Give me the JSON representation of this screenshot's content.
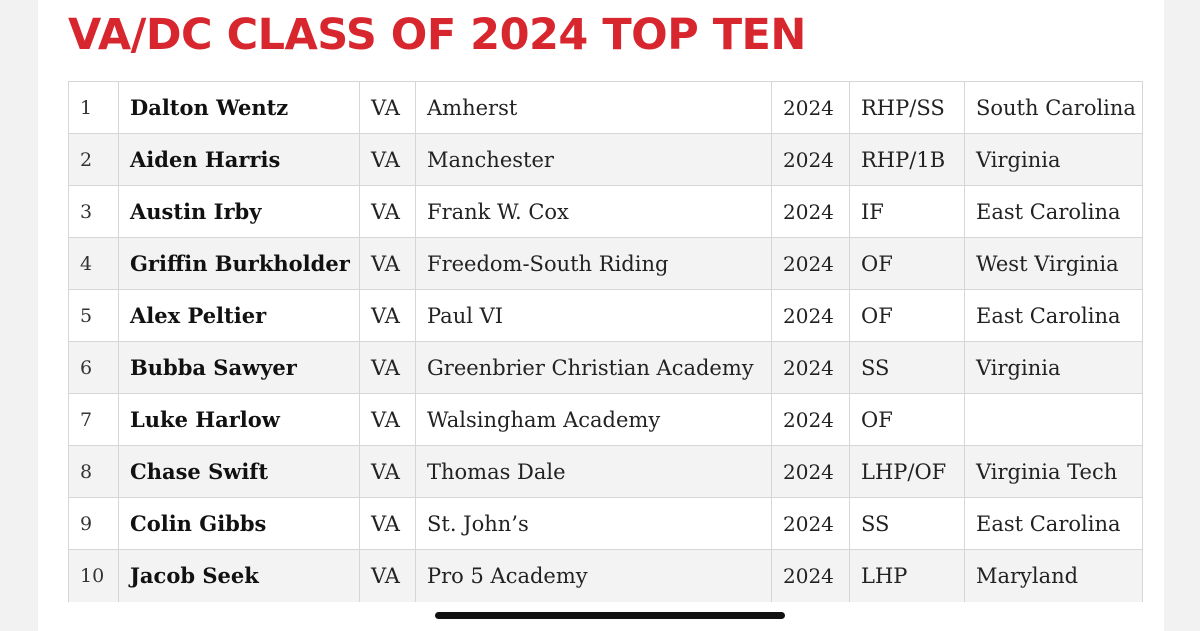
{
  "title": "VA/DC CLASS OF 2024 TOP TEN",
  "players": [
    {
      "rank": "1",
      "name": "Dalton Wentz",
      "state": "VA",
      "school": "Amherst",
      "year": "2024",
      "position": "RHP/SS",
      "commitment": "South Carolina"
    },
    {
      "rank": "2",
      "name": "Aiden Harris",
      "state": "VA",
      "school": "Manchester",
      "year": "2024",
      "position": "RHP/1B",
      "commitment": "Virginia"
    },
    {
      "rank": "3",
      "name": "Austin Irby",
      "state": "VA",
      "school": "Frank W. Cox",
      "year": "2024",
      "position": "IF",
      "commitment": "East Carolina"
    },
    {
      "rank": "4",
      "name": "Griffin Burkholder",
      "state": "VA",
      "school": "Freedom-South Riding",
      "year": "2024",
      "position": "OF",
      "commitment": "West Virginia"
    },
    {
      "rank": "5",
      "name": "Alex Peltier",
      "state": "VA",
      "school": "Paul VI",
      "year": "2024",
      "position": "OF",
      "commitment": "East Carolina"
    },
    {
      "rank": "6",
      "name": "Bubba Sawyer",
      "state": "VA",
      "school": "Greenbrier Christian Academy",
      "year": "2024",
      "position": "SS",
      "commitment": "Virginia"
    },
    {
      "rank": "7",
      "name": "Luke Harlow",
      "state": "VA",
      "school": "Walsingham Academy",
      "year": "2024",
      "position": "OF",
      "commitment": ""
    },
    {
      "rank": "8",
      "name": "Chase Swift",
      "state": "VA",
      "school": "Thomas Dale",
      "year": "2024",
      "position": "LHP/OF",
      "commitment": "Virginia Tech"
    },
    {
      "rank": "9",
      "name": "Colin Gibbs",
      "state": "VA",
      "school": "St. John’s",
      "year": "2024",
      "position": "SS",
      "commitment": "East Carolina"
    },
    {
      "rank": "10",
      "name": "Jacob Seek",
      "state": "VA",
      "school": "Pro 5 Academy",
      "year": "2024",
      "position": "LHP",
      "commitment": "Maryland"
    }
  ],
  "colors": {
    "title": "#d8262f",
    "row_alt": "#f3f3f3",
    "border": "#d6d6d6"
  }
}
